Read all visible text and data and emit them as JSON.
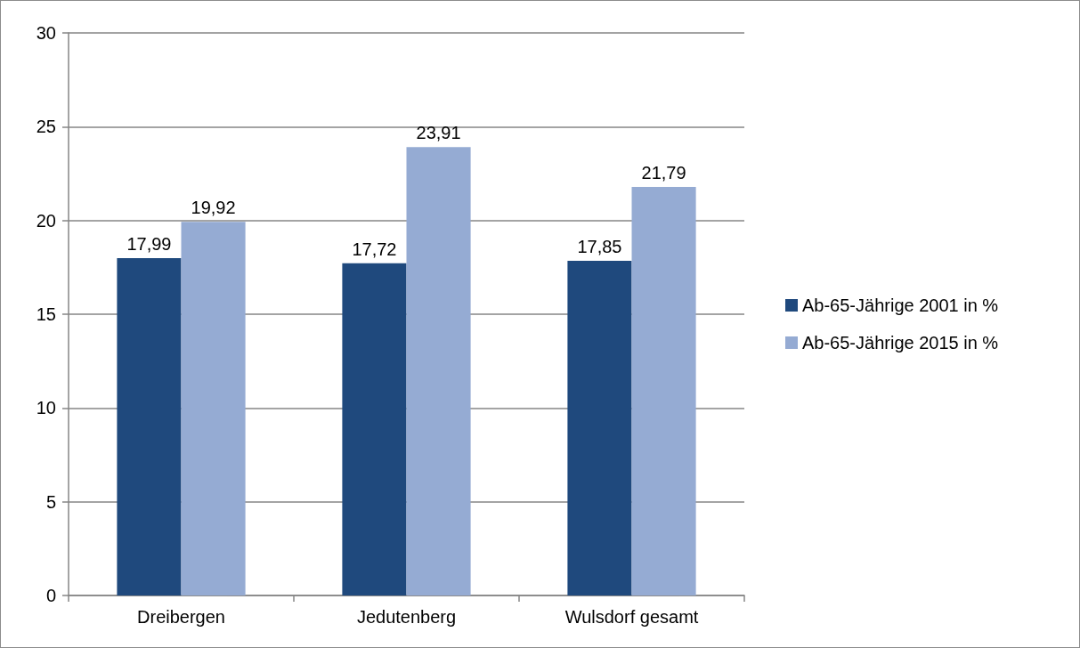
{
  "chart_data": {
    "type": "bar",
    "categories": [
      "Dreibergen",
      "Jedutenberg",
      "Wulsdorf gesamt"
    ],
    "series": [
      {
        "name": "Ab-65-Jährige 2001 in %",
        "color": "#1f497d",
        "values": [
          17.99,
          17.72,
          17.85
        ],
        "value_labels": [
          "17,99",
          "17,72",
          "17,85"
        ]
      },
      {
        "name": "Ab-65-Jährige 2015 in %",
        "color": "#95abd3",
        "values": [
          19.92,
          23.91,
          21.79
        ],
        "value_labels": [
          "19,92",
          "23,91",
          "21,79"
        ]
      }
    ],
    "ylim": [
      0,
      30
    ],
    "yticks": [
      0,
      5,
      10,
      15,
      20,
      25,
      30
    ],
    "grid": "y",
    "legend": "right"
  }
}
